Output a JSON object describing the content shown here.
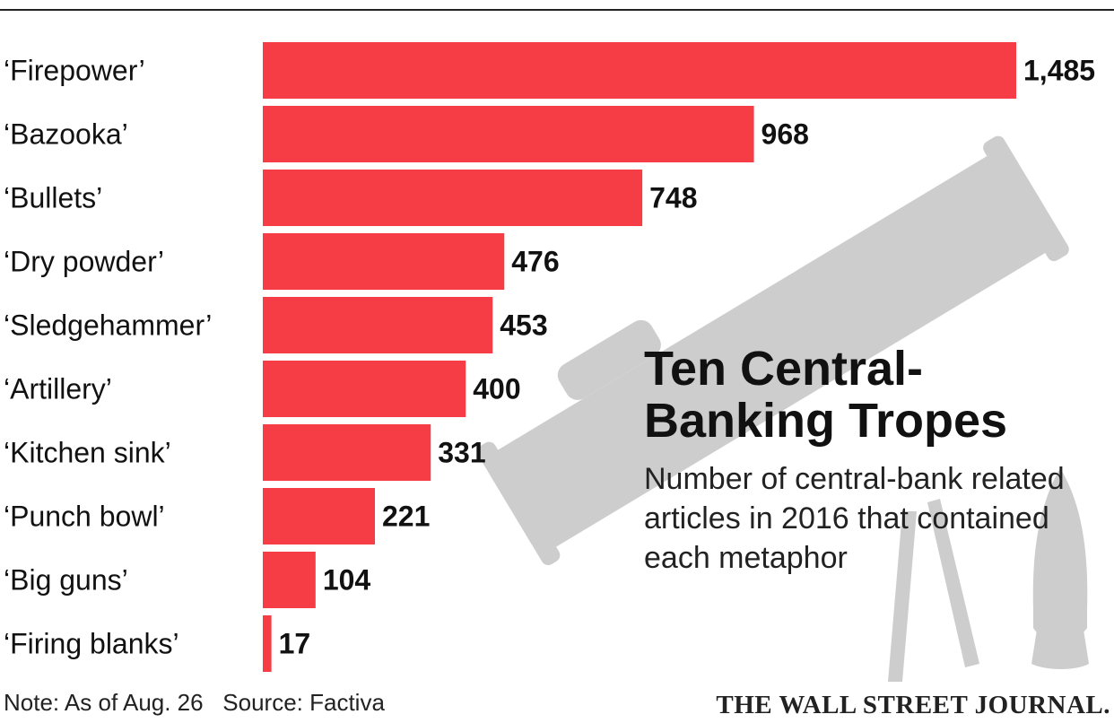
{
  "chart_data": {
    "type": "bar",
    "orientation": "horizontal",
    "title": "Ten Central-Banking Tropes",
    "subtitle": "Number of central-bank related articles in 2016 that contained each metaphor",
    "categories": [
      "‘Firepower’",
      "‘Bazooka’",
      "‘Bullets’",
      "‘Dry powder’",
      "‘Sledgehammer’",
      "‘Artillery’",
      "‘Kitchen sink’",
      "‘Punch bowl’",
      "‘Big guns’",
      "‘Firing blanks’"
    ],
    "values": [
      1485,
      968,
      748,
      476,
      453,
      400,
      331,
      221,
      104,
      17
    ],
    "value_labels": [
      "1,485",
      "968",
      "748",
      "476",
      "453",
      "400",
      "331",
      "221",
      "104",
      "17"
    ],
    "xlim": [
      0,
      1485
    ],
    "grid": false,
    "bar_color": "#f63d45"
  },
  "footer": {
    "note": "Note: As of Aug. 26",
    "source": "Source: Factiva"
  },
  "branding": {
    "logo_text": "THE WALL STREET JOURNAL."
  },
  "colors": {
    "bar": "#f63d45",
    "illustration": "#cdcdcd",
    "text": "#111111"
  }
}
